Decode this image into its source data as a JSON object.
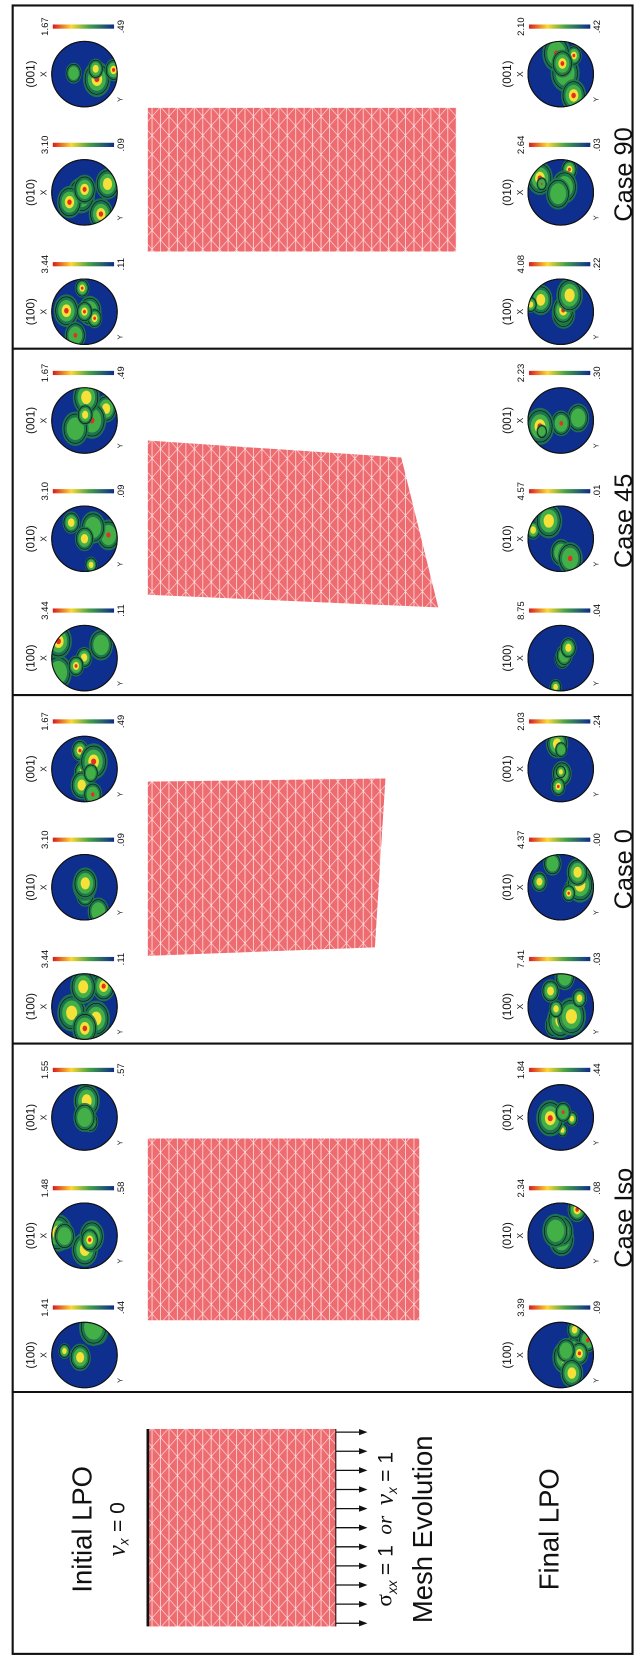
{
  "left": {
    "initial_label": "Initial LPO",
    "boundary_fixed": [
      "v",
      "x",
      "= 0"
    ],
    "boundary_load": [
      "σ",
      "xx",
      "= 1",
      "or",
      "v",
      "x",
      "= 1"
    ],
    "mesh_label": "Mesh Evolution",
    "final_label": "Final LPO"
  },
  "pole_axes": {
    "x": "X",
    "y": "Y"
  },
  "panels": [
    {
      "name": "Case Iso",
      "initial": [
        {
          "plane": "(100)",
          "max": "1.41",
          "min": ".44"
        },
        {
          "plane": "(010)",
          "max": "1.48",
          "min": ".58"
        },
        {
          "plane": "(001)",
          "max": "1.55",
          "min": ".57"
        }
      ],
      "final": [
        {
          "plane": "(100)",
          "max": "3.39",
          "min": ".09"
        },
        {
          "plane": "(010)",
          "max": "2.34",
          "min": ".08"
        },
        {
          "plane": "(001)",
          "max": "1.84",
          "min": ".44"
        }
      ]
    },
    {
      "name": "Case 0",
      "initial": [
        {
          "plane": "(100)",
          "max": "3.44",
          "min": ".11"
        },
        {
          "plane": "(010)",
          "max": "3.10",
          "min": ".09"
        },
        {
          "plane": "(001)",
          "max": "1.67",
          "min": ".49"
        }
      ],
      "final": [
        {
          "plane": "(100)",
          "max": "7.41",
          "min": ".03"
        },
        {
          "plane": "(010)",
          "max": "4.37",
          "min": ".00"
        },
        {
          "plane": "(001)",
          "max": "2.03",
          "min": ".24"
        }
      ]
    },
    {
      "name": "Case 45",
      "initial": [
        {
          "plane": "(100)",
          "max": "3.44",
          "min": ".11"
        },
        {
          "plane": "(010)",
          "max": "3.10",
          "min": ".09"
        },
        {
          "plane": "(001)",
          "max": "1.67",
          "min": ".49"
        }
      ],
      "final": [
        {
          "plane": "(100)",
          "max": "8.75",
          "min": ".04"
        },
        {
          "plane": "(010)",
          "max": "4.57",
          "min": ".01"
        },
        {
          "plane": "(001)",
          "max": "2.23",
          "min": ".30"
        }
      ]
    },
    {
      "name": "Case 90",
      "initial": [
        {
          "plane": "(100)",
          "max": "3.44",
          "min": ".11"
        },
        {
          "plane": "(010)",
          "max": "3.10",
          "min": ".09"
        },
        {
          "plane": "(001)",
          "max": "1.67",
          "min": ".49"
        }
      ],
      "final": [
        {
          "plane": "(100)",
          "max": "4.08",
          "min": ".22"
        },
        {
          "plane": "(010)",
          "max": "2.64",
          "min": ".03"
        },
        {
          "plane": "(001)",
          "max": "2.10",
          "min": ".42"
        }
      ]
    }
  ]
}
